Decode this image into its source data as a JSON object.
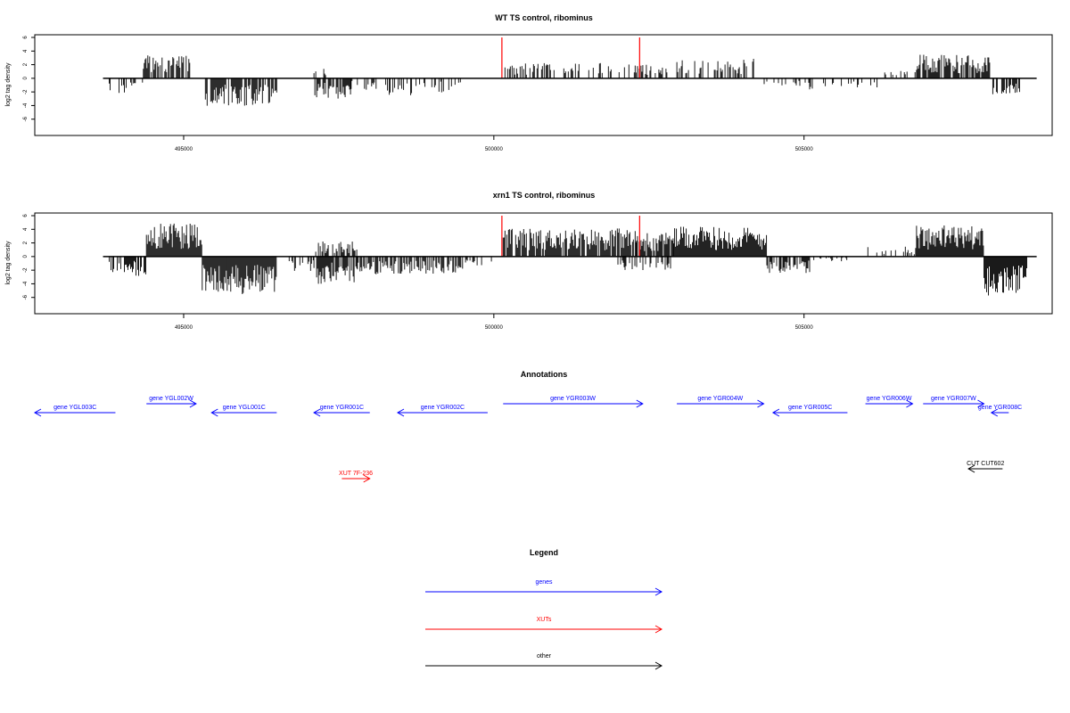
{
  "chart_data": [
    {
      "type": "bar",
      "title": "WT TS control, ribominus",
      "ylabel": "log2 tag density",
      "xlabel": "",
      "ylim": [
        -8,
        6
      ],
      "xlim": [
        492600,
        509000
      ],
      "x_ticks": [
        495000,
        500000,
        505000
      ],
      "x_tick_labels": [
        "495000",
        "500000",
        "505000"
      ],
      "y_ticks": [
        -6,
        -4,
        -2,
        0,
        2,
        4,
        6
      ],
      "y_tick_labels": [
        "-6",
        "-4",
        "-2",
        "0",
        "2",
        "4",
        "6"
      ],
      "highlight_x": [
        500130,
        502350
      ],
      "highlight_color": "#ff0000",
      "bar_color": "#000000",
      "segments": [
        {
          "start": 493800,
          "end": 494150,
          "sign": -1,
          "amp": 2.0,
          "density": 0.35
        },
        {
          "start": 494150,
          "end": 494350,
          "sign": -1,
          "amp": 1.0,
          "density": 0.3
        },
        {
          "start": 494350,
          "end": 495100,
          "sign": 1,
          "amp": 3.0,
          "density": 0.6
        },
        {
          "start": 495350,
          "end": 496500,
          "sign": -1,
          "amp": 3.5,
          "density": 0.85
        },
        {
          "start": 497100,
          "end": 497300,
          "sign": 1,
          "amp": 1.2,
          "density": 0.3
        },
        {
          "start": 497100,
          "end": 497700,
          "sign": -1,
          "amp": 2.6,
          "density": 0.6
        },
        {
          "start": 497700,
          "end": 498200,
          "sign": -1,
          "amp": 1.5,
          "density": 0.3
        },
        {
          "start": 498200,
          "end": 498900,
          "sign": -1,
          "amp": 2.2,
          "density": 0.25
        },
        {
          "start": 499000,
          "end": 499500,
          "sign": -1,
          "amp": 1.8,
          "density": 0.3
        },
        {
          "start": 500150,
          "end": 502300,
          "sign": 1,
          "amp": 2.0,
          "density": 0.35
        },
        {
          "start": 502300,
          "end": 502800,
          "sign": 1,
          "amp": 1.8,
          "density": 0.4
        },
        {
          "start": 502950,
          "end": 504200,
          "sign": 1,
          "amp": 2.5,
          "density": 0.45
        },
        {
          "start": 504300,
          "end": 505200,
          "sign": -1,
          "amp": 1.5,
          "density": 0.3
        },
        {
          "start": 505300,
          "end": 506200,
          "sign": -1,
          "amp": 1.2,
          "density": 0.2
        },
        {
          "start": 506200,
          "end": 506800,
          "sign": 1,
          "amp": 1.0,
          "density": 0.15
        },
        {
          "start": 506800,
          "end": 508000,
          "sign": 1,
          "amp": 3.0,
          "density": 0.7
        },
        {
          "start": 508000,
          "end": 508500,
          "sign": -1,
          "amp": 2.5,
          "density": 0.5
        }
      ]
    },
    {
      "type": "bar",
      "title": "xrn1 TS control, ribominus",
      "ylabel": "log2 tag density",
      "xlabel": "",
      "ylim": [
        -8,
        6
      ],
      "xlim": [
        492600,
        509000
      ],
      "x_ticks": [
        495000,
        500000,
        505000
      ],
      "x_tick_labels": [
        "495000",
        "500000",
        "505000"
      ],
      "y_ticks": [
        -6,
        -4,
        -2,
        0,
        2,
        4,
        6
      ],
      "y_tick_labels": [
        "-6",
        "-4",
        "-2",
        "0",
        "2",
        "4",
        "6"
      ],
      "highlight_x": [
        500130,
        502350
      ],
      "highlight_color": "#ff0000",
      "bar_color": "#000000",
      "segments": [
        {
          "start": 493800,
          "end": 494400,
          "sign": -1,
          "amp": 2.6,
          "density": 0.6
        },
        {
          "start": 494400,
          "end": 495300,
          "sign": 1,
          "amp": 4.2,
          "density": 1.0
        },
        {
          "start": 495300,
          "end": 496500,
          "sign": -1,
          "amp": 4.8,
          "density": 1.0
        },
        {
          "start": 496700,
          "end": 497100,
          "sign": -1,
          "amp": 2.0,
          "density": 0.4
        },
        {
          "start": 497100,
          "end": 497800,
          "sign": 1,
          "amp": 2.0,
          "density": 0.6
        },
        {
          "start": 497100,
          "end": 497800,
          "sign": -1,
          "amp": 3.5,
          "density": 0.8
        },
        {
          "start": 497800,
          "end": 499500,
          "sign": -1,
          "amp": 2.3,
          "density": 0.6
        },
        {
          "start": 499500,
          "end": 500000,
          "sign": -1,
          "amp": 1.2,
          "density": 0.3
        },
        {
          "start": 500150,
          "end": 502300,
          "sign": 1,
          "amp": 3.6,
          "density": 0.9
        },
        {
          "start": 502300,
          "end": 502900,
          "sign": 1,
          "amp": 3.2,
          "density": 0.8
        },
        {
          "start": 502000,
          "end": 502900,
          "sign": -1,
          "amp": 1.8,
          "density": 0.3
        },
        {
          "start": 502900,
          "end": 504400,
          "sign": 1,
          "amp": 3.8,
          "density": 1.0
        },
        {
          "start": 504400,
          "end": 505100,
          "sign": -1,
          "amp": 2.2,
          "density": 0.6
        },
        {
          "start": 505100,
          "end": 505700,
          "sign": -1,
          "amp": 0.6,
          "density": 0.3
        },
        {
          "start": 506000,
          "end": 506800,
          "sign": 1,
          "amp": 1.3,
          "density": 0.3
        },
        {
          "start": 506800,
          "end": 507900,
          "sign": 1,
          "amp": 4.0,
          "density": 1.0
        },
        {
          "start": 507900,
          "end": 508600,
          "sign": -1,
          "amp": 5.0,
          "density": 1.0
        }
      ]
    }
  ],
  "annotations": {
    "title": "Annotations",
    "features": [
      {
        "label": "gene YGL003C",
        "start": 492600,
        "end": 493900,
        "dir": "left",
        "color": "#0000ff",
        "row": 1,
        "clip": true
      },
      {
        "label": "gene YGL002W",
        "start": 494400,
        "end": 495200,
        "dir": "right",
        "color": "#0000ff",
        "row": 0
      },
      {
        "label": "gene YGL001C",
        "start": 495450,
        "end": 496500,
        "dir": "left",
        "color": "#0000ff",
        "row": 1
      },
      {
        "label": "gene YGR001C",
        "start": 497100,
        "end": 498000,
        "dir": "left",
        "color": "#0000ff",
        "row": 1
      },
      {
        "label": "gene YGR002C",
        "start": 498450,
        "end": 499900,
        "dir": "left",
        "color": "#0000ff",
        "row": 1
      },
      {
        "label": "gene YGR003W",
        "start": 500150,
        "end": 502400,
        "dir": "right",
        "color": "#0000ff",
        "row": 0
      },
      {
        "label": "gene YGR004W",
        "start": 502950,
        "end": 504350,
        "dir": "right",
        "color": "#0000ff",
        "row": 0
      },
      {
        "label": "gene YGR005C",
        "start": 504500,
        "end": 505700,
        "dir": "left",
        "color": "#0000ff",
        "row": 1
      },
      {
        "label": "gene YGR006W",
        "start": 505990,
        "end": 506750,
        "dir": "right",
        "color": "#0000ff",
        "row": 0
      },
      {
        "label": "gene YGR007W",
        "start": 506920,
        "end": 507900,
        "dir": "right",
        "color": "#0000ff",
        "row": 0
      },
      {
        "label": "gene YGR008C",
        "start": 508020,
        "end": 508300,
        "dir": "left",
        "color": "#0000ff",
        "row": 1
      },
      {
        "label": "XUT 7F-236",
        "start": 497550,
        "end": 498000,
        "dir": "right",
        "color": "#ff0000",
        "row": 3
      },
      {
        "label": "CUT CUT602",
        "start": 507650,
        "end": 508200,
        "dir": "left",
        "color": "#000000",
        "row": 2
      }
    ]
  },
  "legend": {
    "title": "Legend",
    "items": [
      {
        "label": "genes",
        "color": "#0000ff"
      },
      {
        "label": "XUTs",
        "color": "#ff0000"
      },
      {
        "label": "other",
        "color": "#000000"
      }
    ]
  }
}
